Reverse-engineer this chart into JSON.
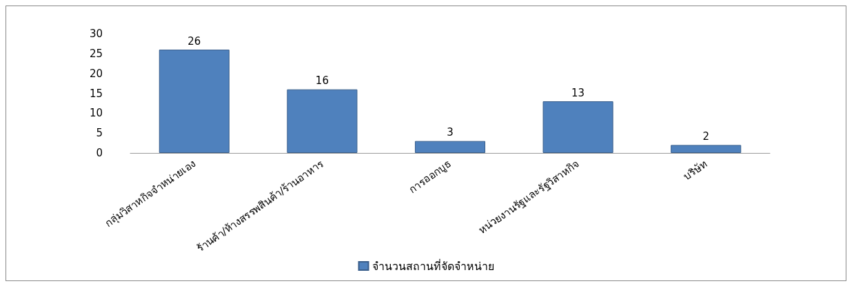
{
  "chart_data": {
    "type": "bar",
    "categories": [
      "กลุ่มวิสาหกิจจำหน่ายเอง",
      "ร้านค้า/ห้างสรรพสินค้า/ร้านอาหาร",
      "การออกบูธ",
      "หน่วยงานรัฐและรัฐวิสาหกิจ",
      "บริษัท"
    ],
    "series": [
      {
        "name": "จำนวนสถานที่จัดจำหน่าย",
        "color": "#4f81bd",
        "values": [
          26,
          16,
          3,
          13,
          2
        ]
      }
    ],
    "ylim": [
      0,
      30
    ],
    "yticks": [
      0,
      5,
      10,
      15,
      20,
      25,
      30
    ],
    "grid": false,
    "legend": "bottom",
    "data_labels": true
  }
}
